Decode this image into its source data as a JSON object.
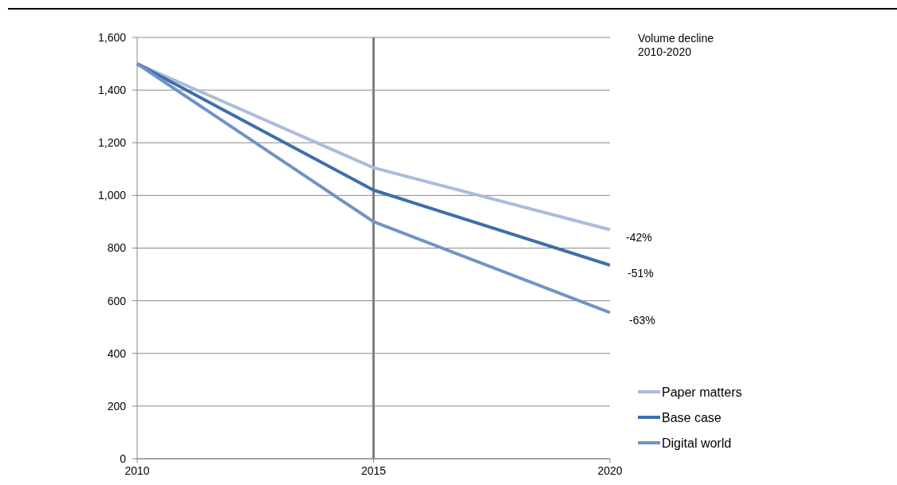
{
  "chart_data": {
    "type": "line",
    "x": [
      2010,
      2015,
      2020
    ],
    "series": [
      {
        "name": "Paper matters",
        "color": "#a9bcdc",
        "values": [
          1500,
          1105,
          870
        ]
      },
      {
        "name": "Base case",
        "color": "#3f6eaa",
        "values": [
          1500,
          1020,
          735
        ]
      },
      {
        "name": "Digital world",
        "color": "#7193c4",
        "values": [
          1500,
          900,
          555
        ]
      }
    ],
    "xlim": [
      2010,
      2020
    ],
    "xticks": [
      2010,
      2015,
      2020
    ],
    "ylim": [
      0,
      1600
    ],
    "yticks": [
      {
        "value": 0,
        "label": "0"
      },
      {
        "value": 200,
        "label": "200"
      },
      {
        "value": 400,
        "label": "400"
      },
      {
        "value": 600,
        "label": "600"
      },
      {
        "value": 800,
        "label": "800"
      },
      {
        "value": 1000,
        "label": "1,000"
      },
      {
        "value": 1200,
        "label": "1,200"
      },
      {
        "value": 1400,
        "label": "1,400"
      },
      {
        "value": 1600,
        "label": "1,600"
      }
    ],
    "grid": "y",
    "legend": "bottom right",
    "marker": "none",
    "line_style": "solid",
    "ref_lines": [
      {
        "axis": "x",
        "value": 2015,
        "color": "#808080"
      }
    ],
    "annotations": [
      "Volume decline\n2010-2020",
      "-42%",
      "-51%",
      "-63%"
    ]
  }
}
